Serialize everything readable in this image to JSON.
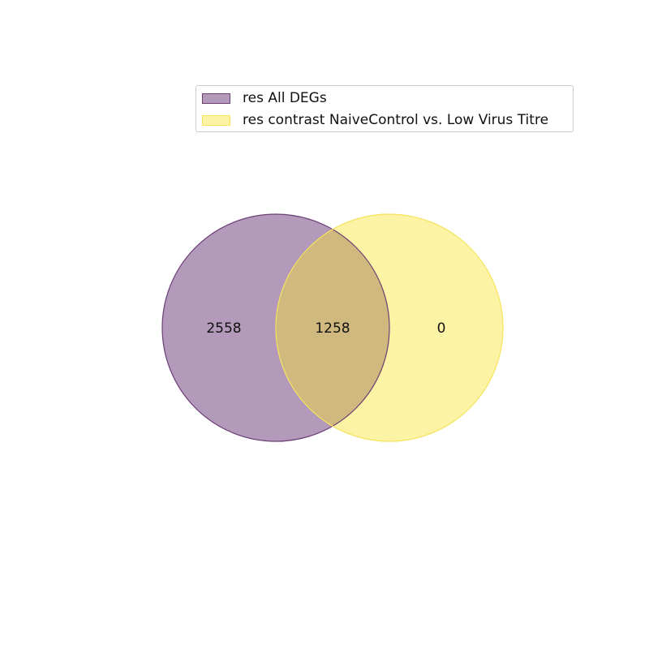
{
  "sets": [
    {
      "label": "res All DEGs",
      "fill": "#b399ba",
      "stroke": "#6b3f74"
    },
    {
      "label": "res contrast NaiveControl vs. Low Virus Titre",
      "fill": "#fdf3a4",
      "stroke": "#f5e45c"
    }
  ],
  "overlap_fill": "#d0b97f",
  "regions": {
    "only_a": "2558",
    "both": "1258",
    "only_b": "0"
  }
}
